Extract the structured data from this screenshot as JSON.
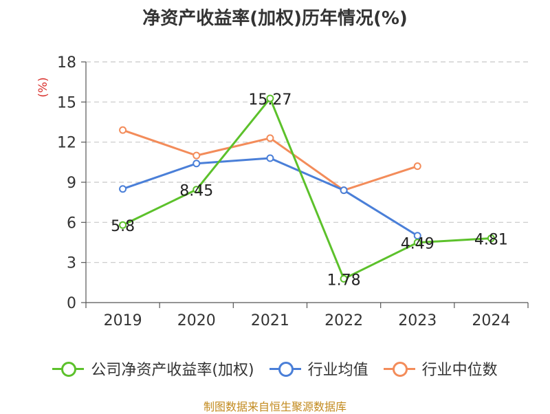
{
  "title": "净资产收益率(加权)历年情况(%)",
  "source": "制图数据来自恒生聚源数据库",
  "chart_data": {
    "type": "line",
    "title": "净资产收益率(加权)历年情况(%)",
    "ylabel": "(%)",
    "xlabel": "",
    "categories": [
      "2019",
      "2020",
      "2021",
      "2022",
      "2023",
      "2024"
    ],
    "ylim": [
      0,
      18
    ],
    "yticks": [
      0,
      3,
      6,
      9,
      12,
      15,
      18
    ],
    "grid": true,
    "legend_position": "bottom",
    "series": [
      {
        "name": "公司净资产收益率(加权)",
        "color": "#5cc12b",
        "values": [
          5.8,
          8.45,
          15.27,
          1.78,
          4.49,
          4.81
        ],
        "labels": [
          "5.8",
          "8.45",
          "15.27",
          "1.78",
          "4.49",
          "4.81"
        ],
        "show_labels": true
      },
      {
        "name": "行业均值",
        "color": "#4a7fd8",
        "values": [
          8.5,
          10.4,
          10.8,
          8.4,
          5.0,
          null
        ],
        "show_labels": false
      },
      {
        "name": "行业中位数",
        "color": "#f38c5a",
        "values": [
          12.9,
          11.0,
          12.3,
          8.4,
          10.2,
          null
        ],
        "show_labels": false
      }
    ]
  }
}
